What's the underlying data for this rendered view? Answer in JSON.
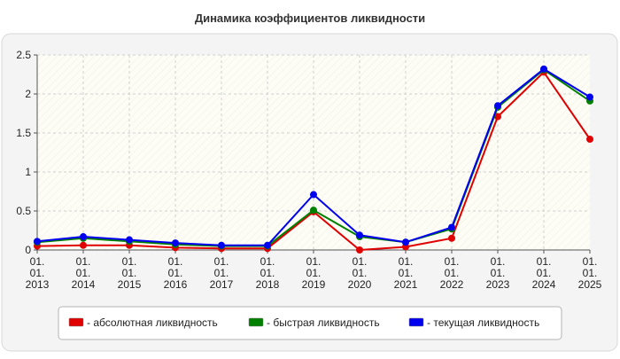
{
  "chart_data": {
    "type": "line",
    "title": "Динамика коэффициентов ликвидности",
    "xlabel": "",
    "ylabel": "",
    "categories": [
      [
        "01.",
        "01.",
        "2013"
      ],
      [
        "01.",
        "01.",
        "2014"
      ],
      [
        "01.",
        "01.",
        "2015"
      ],
      [
        "01.",
        "01.",
        "2016"
      ],
      [
        "01.",
        "01.",
        "2017"
      ],
      [
        "01.",
        "01.",
        "2018"
      ],
      [
        "01.",
        "01.",
        "2019"
      ],
      [
        "01.",
        "01.",
        "2020"
      ],
      [
        "01.",
        "01.",
        "2021"
      ],
      [
        "01.",
        "01.",
        "2022"
      ],
      [
        "01.",
        "01.",
        "2023"
      ],
      [
        "01.",
        "01.",
        "2024"
      ],
      [
        "01.",
        "01.",
        "2025"
      ]
    ],
    "ylim": [
      0,
      2.5
    ],
    "yticks": [
      "0",
      "0.5",
      "1",
      "1.5",
      "2",
      "2.5"
    ],
    "grid": true,
    "legend_position": "bottom",
    "series": [
      {
        "name": "- абсолютная ликвидность",
        "color": "#e00000",
        "values": [
          0.05,
          0.06,
          0.06,
          0.03,
          0.02,
          0.02,
          0.49,
          0.0,
          0.04,
          0.15,
          1.71,
          2.28,
          1.42
        ]
      },
      {
        "name": "- быстрая ликвидность",
        "color": "#008000",
        "values": [
          0.1,
          0.15,
          0.11,
          0.07,
          0.05,
          0.05,
          0.51,
          0.17,
          0.1,
          0.27,
          1.83,
          2.31,
          1.91
        ]
      },
      {
        "name": "- текущая ликвидность",
        "color": "#0000ee",
        "values": [
          0.11,
          0.17,
          0.13,
          0.09,
          0.06,
          0.06,
          0.71,
          0.19,
          0.1,
          0.29,
          1.85,
          2.32,
          1.96
        ]
      }
    ]
  }
}
